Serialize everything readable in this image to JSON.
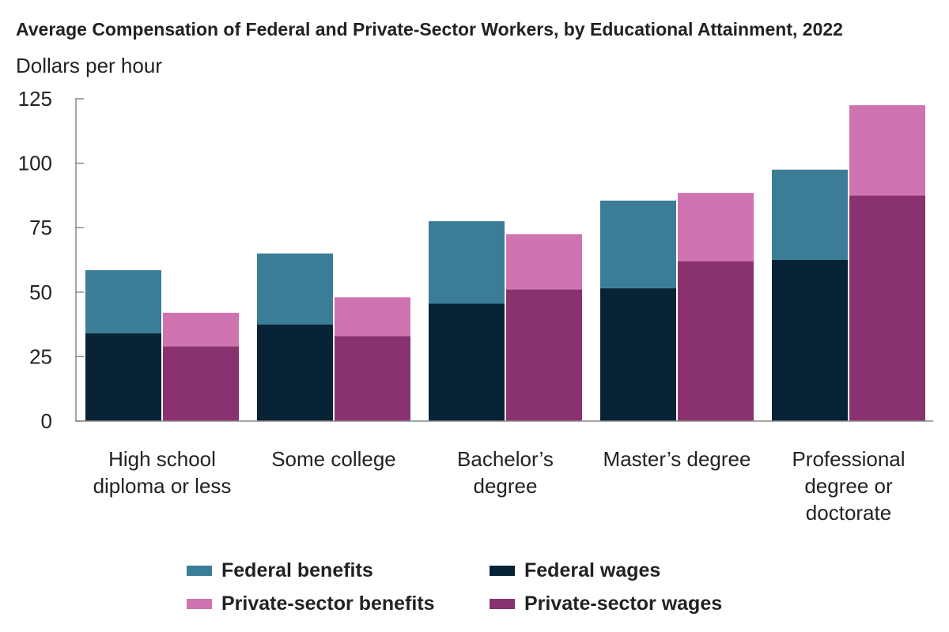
{
  "chart_data": {
    "type": "bar",
    "stacked": true,
    "title": "Average Compensation of Federal and Private-Sector Workers, by Educational Attainment, 2022",
    "ylabel": "Dollars per hour",
    "xlabel": "",
    "ylim": [
      0,
      125
    ],
    "yticks": [
      0,
      25,
      50,
      75,
      100,
      125
    ],
    "categories": [
      [
        "High school",
        "diploma or less"
      ],
      [
        "Some college"
      ],
      [
        "Bachelor’s",
        "degree"
      ],
      [
        "Master’s degree"
      ],
      [
        "Professional",
        "degree or",
        "doctorate"
      ]
    ],
    "groups": [
      {
        "name": "Federal",
        "stack": [
          {
            "name": "Federal wages",
            "color": "#082236",
            "values": [
              34,
              37.5,
              45.5,
              51.5,
              62.5
            ]
          },
          {
            "name": "Federal benefits",
            "color": "#3b7d96",
            "values": [
              24.5,
              27.5,
              32,
              34,
              35
            ]
          }
        ]
      },
      {
        "name": "Private sector",
        "stack": [
          {
            "name": "Private-sector wages",
            "color": "#8a3270",
            "values": [
              29,
              33,
              51,
              62,
              87.5
            ]
          },
          {
            "name": "Private-sector benefits",
            "color": "#cf74b0",
            "values": [
              13,
              15,
              21.5,
              26.5,
              35
            ]
          }
        ]
      }
    ],
    "legend": [
      {
        "label": "Federal benefits",
        "color": "#3b7d96"
      },
      {
        "label": "Federal wages",
        "color": "#082236"
      },
      {
        "label": "Private-sector benefits",
        "color": "#cf74b0"
      },
      {
        "label": "Private-sector wages",
        "color": "#8a3270"
      }
    ],
    "legend_position": "bottom"
  }
}
